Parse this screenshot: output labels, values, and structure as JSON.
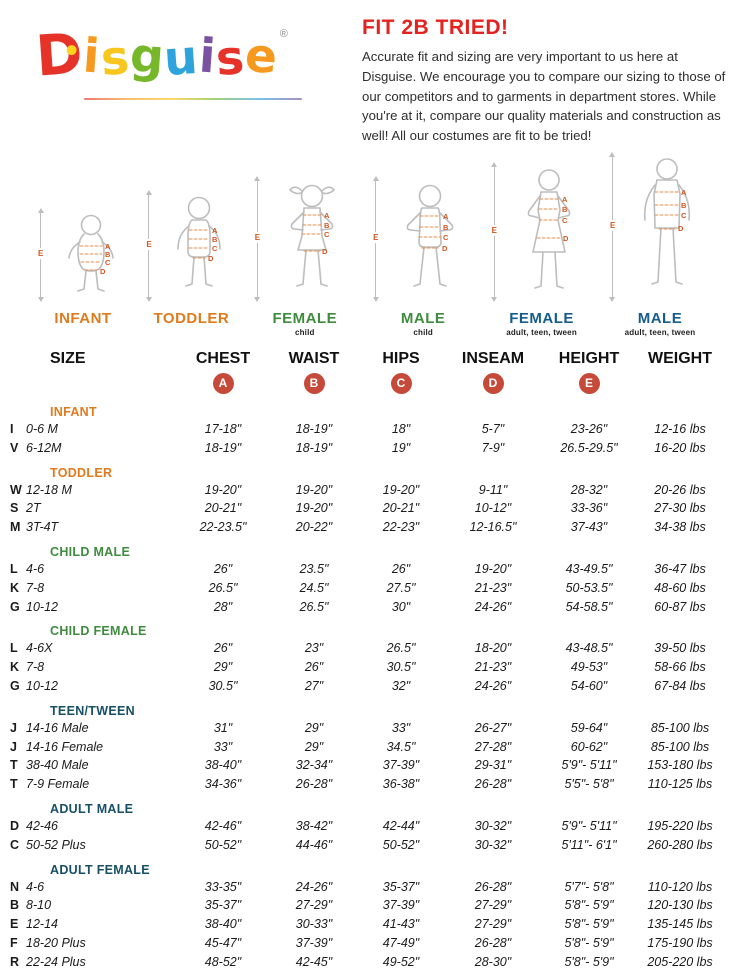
{
  "colors": {
    "title-red": "#e42320",
    "badge-red": "#c64a3a",
    "marker-orange": "#d4551f",
    "figure-gray": "#bdbdbd"
  },
  "logo": {
    "letters": [
      {
        "char": "D",
        "color": "#e63329"
      },
      {
        "char": "i",
        "color": "#f59a1f"
      },
      {
        "char": "s",
        "color": "#f7c71f"
      },
      {
        "char": "g",
        "color": "#76b82a"
      },
      {
        "char": "u",
        "color": "#2fa3dc"
      },
      {
        "char": "i",
        "color": "#7a52a1"
      },
      {
        "char": "s",
        "color": "#e63329"
      },
      {
        "char": "e",
        "color": "#f59a1f"
      }
    ],
    "registered": "®"
  },
  "header": {
    "title": "FIT 2B TRIED!",
    "body": "Accurate fit and sizing are very important to us here at Disguise. We encourage you to compare our sizing to those of our competitors and to garments in department stores. While you're at it, compare our quality materials and construction as well! All our costumes are fit to be tried!"
  },
  "measurement_letters": [
    "A",
    "B",
    "C",
    "D",
    "E"
  ],
  "figures": [
    {
      "shape": "infant",
      "label": "INFANT",
      "sublabel": "",
      "color": "#df7a1d"
    },
    {
      "shape": "toddler",
      "label": "TODDLER",
      "sublabel": "",
      "color": "#df7a1d"
    },
    {
      "shape": "girl",
      "label": "FEMALE",
      "sublabel": "child",
      "color": "#3f8c3f"
    },
    {
      "shape": "boy",
      "label": "MALE",
      "sublabel": "child",
      "color": "#3f8c3f"
    },
    {
      "shape": "woman",
      "label": "FEMALE",
      "sublabel": "adult, teen, tween",
      "color": "#155d8b"
    },
    {
      "shape": "man",
      "label": "MALE",
      "sublabel": "adult, teen, tween",
      "color": "#155d8b"
    }
  ],
  "table": {
    "headers": [
      "SIZE",
      "CHEST",
      "WAIST",
      "HIPS",
      "INSEAM",
      "HEIGHT",
      "WEIGHT"
    ],
    "sections": [
      {
        "name": "INFANT",
        "color": "#df7a1d",
        "rows": [
          {
            "key": "I",
            "size": "0-6 M",
            "values": [
              "17-18\"",
              "18-19\"",
              "18\"",
              "5-7\"",
              "23-26\"",
              "12-16 lbs"
            ]
          },
          {
            "key": "V",
            "size": "6-12M",
            "values": [
              "18-19\"",
              "18-19\"",
              "19\"",
              "7-9\"",
              "26.5-29.5\"",
              "16-20 lbs"
            ]
          }
        ]
      },
      {
        "name": "TODDLER",
        "color": "#df7a1d",
        "rows": [
          {
            "key": "W",
            "size": "12-18 M",
            "values": [
              "19-20\"",
              "19-20\"",
              "19-20\"",
              "9-11\"",
              "28-32\"",
              "20-26 lbs"
            ]
          },
          {
            "key": "S",
            "size": "2T",
            "values": [
              "20-21\"",
              "19-20\"",
              "20-21\"",
              "10-12\"",
              "33-36\"",
              "27-30 lbs"
            ]
          },
          {
            "key": "M",
            "size": "3T-4T",
            "values": [
              "22-23.5\"",
              "20-22\"",
              "22-23\"",
              "12-16.5\"",
              "37-43\"",
              "34-38 lbs"
            ]
          }
        ]
      },
      {
        "name": "CHILD MALE",
        "color": "#3f8c3f",
        "rows": [
          {
            "key": "L",
            "size": "4-6",
            "values": [
              "26\"",
              "23.5\"",
              "26\"",
              "19-20\"",
              "43-49.5\"",
              "36-47 lbs"
            ]
          },
          {
            "key": "K",
            "size": "7-8",
            "values": [
              "26.5\"",
              "24.5\"",
              "27.5\"",
              "21-23\"",
              "50-53.5\"",
              "48-60 lbs"
            ]
          },
          {
            "key": "G",
            "size": "10-12",
            "values": [
              "28\"",
              "26.5\"",
              "30\"",
              "24-26\"",
              "54-58.5\"",
              "60-87 lbs"
            ]
          }
        ]
      },
      {
        "name": "CHILD FEMALE",
        "color": "#3f8c3f",
        "rows": [
          {
            "key": "L",
            "size": "4-6X",
            "values": [
              "26\"",
              "23\"",
              "26.5\"",
              "18-20\"",
              "43-48.5\"",
              "39-50 lbs"
            ]
          },
          {
            "key": "K",
            "size": "7-8",
            "values": [
              "29\"",
              "26\"",
              "30.5\"",
              "21-23\"",
              "49-53\"",
              "58-66 lbs"
            ]
          },
          {
            "key": "G",
            "size": "10-12",
            "values": [
              "30.5\"",
              "27\"",
              "32\"",
              "24-26\"",
              "54-60\"",
              "67-84 lbs"
            ]
          }
        ]
      },
      {
        "name": "TEEN/TWEEN",
        "color": "#174f63",
        "rows": [
          {
            "key": "J",
            "size": "14-16 Male",
            "values": [
              "31\"",
              "29\"",
              "33\"",
              "26-27\"",
              "59-64\"",
              "85-100 lbs"
            ]
          },
          {
            "key": "J",
            "size": "14-16 Female",
            "values": [
              "33\"",
              "29\"",
              "34.5\"",
              "27-28\"",
              "60-62\"",
              "85-100 lbs"
            ]
          },
          {
            "key": "T",
            "size": "38-40 Male",
            "values": [
              "38-40\"",
              "32-34\"",
              "37-39\"",
              "29-31\"",
              "5'9\"- 5'11\"",
              "153-180 lbs"
            ]
          },
          {
            "key": "T",
            "size": "7-9 Female",
            "values": [
              "34-36\"",
              "26-28\"",
              "36-38\"",
              "26-28\"",
              "5'5\"- 5'8\"",
              "110-125 lbs"
            ]
          }
        ]
      },
      {
        "name": "ADULT MALE",
        "color": "#174f63",
        "rows": [
          {
            "key": "D",
            "size": "42-46",
            "values": [
              "42-46\"",
              "38-42\"",
              "42-44\"",
              "30-32\"",
              "5'9\"- 5'11\"",
              "195-220 lbs"
            ]
          },
          {
            "key": "C",
            "size": "50-52 Plus",
            "values": [
              "50-52\"",
              "44-46\"",
              "50-52\"",
              "30-32\"",
              "5'11\"- 6'1\"",
              "260-280 lbs"
            ]
          }
        ]
      },
      {
        "name": "ADULT FEMALE",
        "color": "#174f63",
        "rows": [
          {
            "key": "N",
            "size": "4-6",
            "values": [
              "33-35\"",
              "24-26\"",
              "35-37\"",
              "26-28\"",
              "5'7\"- 5'8\"",
              "110-120 lbs"
            ]
          },
          {
            "key": "B",
            "size": "8-10",
            "values": [
              "35-37\"",
              "27-29\"",
              "37-39\"",
              "27-29\"",
              "5'8\"- 5'9\"",
              "120-130 lbs"
            ]
          },
          {
            "key": "E",
            "size": "12-14",
            "values": [
              "38-40\"",
              "30-33\"",
              "41-43\"",
              "27-29\"",
              "5'8\"- 5'9\"",
              "135-145 lbs"
            ]
          },
          {
            "key": "F",
            "size": "18-20 Plus",
            "values": [
              "45-47\"",
              "37-39\"",
              "47-49\"",
              "26-28\"",
              "5'8\"- 5'9\"",
              "175-190 lbs"
            ]
          },
          {
            "key": "R",
            "size": "22-24 Plus",
            "values": [
              "48-52\"",
              "42-45\"",
              "49-52\"",
              "28-30\"",
              "5'8\"- 5'9\"",
              "205-220 lbs"
            ]
          }
        ]
      }
    ]
  }
}
